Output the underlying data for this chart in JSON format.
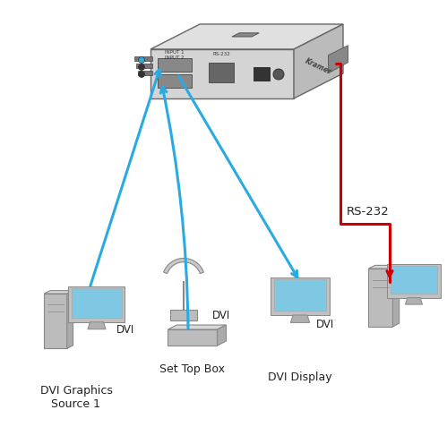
{
  "bg_color": "#ffffff",
  "title": "",
  "cyan_color": "#29ABE2",
  "red_color": "#CC0000",
  "dark_color": "#333333",
  "gray_color": "#AAAAAA",
  "light_gray": "#CCCCCC",
  "device_gray": "#D0D0D0",
  "device_dark": "#888888",
  "screen_blue": "#7EC8E3",
  "labels": {
    "dvi_graphics": "DVI Graphics\nSource 1",
    "set_top_box": "Set Top Box",
    "dvi_display": "DVI Display",
    "rs232": "RS-232",
    "dvi1": "DVI",
    "dvi2": "DVI",
    "dvi3": "DVI"
  },
  "font_size_label": 9,
  "font_size_dvi": 8.5
}
